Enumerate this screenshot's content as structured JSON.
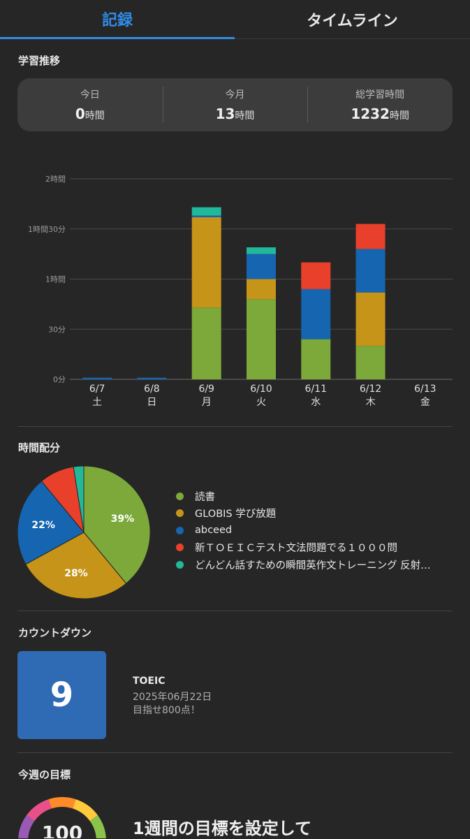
{
  "tabs": [
    {
      "label": "記録",
      "active": true
    },
    {
      "label": "タイムライン",
      "active": false
    }
  ],
  "learning_trend": {
    "title": "学習推移",
    "stats": [
      {
        "label": "今日",
        "value": "0",
        "unit": "時間"
      },
      {
        "label": "今月",
        "value": "13",
        "unit": "時間"
      },
      {
        "label": "総学習時間",
        "value": "1232",
        "unit": "時間"
      }
    ]
  },
  "chart_data": [
    {
      "type": "bar",
      "stacked": true,
      "categories": [
        "6/7",
        "6/8",
        "6/9",
        "6/10",
        "6/11",
        "6/12",
        "6/13"
      ],
      "weekdays": [
        "土",
        "日",
        "月",
        "火",
        "水",
        "木",
        "金"
      ],
      "y_ticks": [
        {
          "value": 0,
          "label": "0分"
        },
        {
          "value": 30,
          "label": "30分"
        },
        {
          "value": 60,
          "label": "1時間"
        },
        {
          "value": 90,
          "label": "1時間30分"
        },
        {
          "value": 120,
          "label": "2時間"
        }
      ],
      "ylim": [
        0,
        120
      ],
      "y_unit": "minutes",
      "grid": true,
      "series": [
        {
          "name": "読書",
          "color": "#7ca93a",
          "values": [
            0,
            0,
            43,
            48,
            24,
            20,
            0
          ]
        },
        {
          "name": "GLOBIS 学び放題",
          "color": "#c69418",
          "values": [
            0,
            0,
            54,
            12,
            0,
            32,
            0
          ]
        },
        {
          "name": "abceed",
          "color": "#1565b0",
          "values": [
            1,
            1,
            1,
            15,
            30,
            26,
            0
          ]
        },
        {
          "name": "新ＴＯＥＩＣテスト文法問題でる１０００問",
          "color": "#e8402a",
          "values": [
            0,
            0,
            0,
            0,
            16,
            15,
            0
          ]
        },
        {
          "name": "どんどん話すための瞬間英作文トレーニング 反射…",
          "color": "#22b89a",
          "values": [
            0,
            0,
            5,
            4,
            0,
            0,
            0
          ]
        }
      ]
    },
    {
      "type": "pie",
      "title": "時間配分",
      "slices": [
        {
          "name": "読書",
          "value": 39,
          "label": "39%",
          "color": "#7ca93a"
        },
        {
          "name": "GLOBIS 学び放題",
          "value": 28,
          "label": "28%",
          "color": "#c69418"
        },
        {
          "name": "abceed",
          "value": 22,
          "label": "22%",
          "color": "#1565b0"
        },
        {
          "name": "新ＴＯＥＩＣテスト文法問題でる１０００問",
          "value": 8.5,
          "label": "",
          "color": "#e8402a"
        },
        {
          "name": "どんどん話すための瞬間英作文トレーニング 反射…",
          "value": 2.5,
          "label": "",
          "color": "#22b89a"
        }
      ]
    }
  ],
  "countdown": {
    "title": "カウントダウン",
    "days": "9",
    "color": "#2f6bb5",
    "event": "TOEIC",
    "date": "2025年06月22日",
    "note": "目指せ800点！"
  },
  "weekly_goal": {
    "title": "今週の目標",
    "gauge_value": "100",
    "message": "1週間の目標を設定して"
  }
}
